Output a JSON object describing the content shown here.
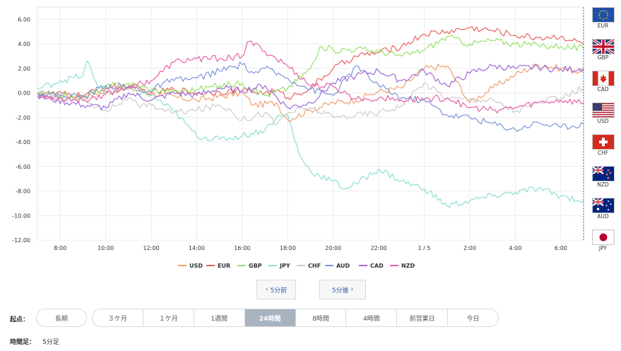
{
  "chart_data": {
    "type": "line",
    "ylim": [
      -12,
      7
    ],
    "xlim": [
      0,
      24
    ],
    "yticks": [
      6,
      4,
      2,
      0,
      -2,
      -4,
      -6,
      -8,
      -10,
      -12
    ],
    "ytick_labels": [
      "6.00",
      "4.00",
      "2.00",
      "0.00",
      "-2.00",
      "-4.00",
      "-6.00",
      "-8.00",
      "-10.00",
      "-12.00"
    ],
    "xticks": [
      1,
      3,
      5,
      7,
      9,
      11,
      13,
      15,
      17,
      19,
      21,
      23
    ],
    "xtick_labels": [
      "8:00",
      "10:00",
      "12:00",
      "14:00",
      "16:00",
      "18:00",
      "20:00",
      "22:00",
      "1 / 5",
      "2:00",
      "4:00",
      "6:00"
    ],
    "grid": true,
    "legend_position": "bottom",
    "series": [
      {
        "name": "USD",
        "color": "#f0a070",
        "x": [
          0,
          2,
          4,
          5.5,
          7,
          9,
          9.5,
          10.5,
          11,
          12,
          13,
          14,
          14.5,
          15,
          16,
          17,
          18,
          19,
          20,
          21,
          22,
          23,
          24
        ],
        "y": [
          -0.2,
          -0.3,
          0.4,
          -0.2,
          -0.6,
          0.0,
          -1.0,
          -0.8,
          -2.2,
          -1.4,
          -0.8,
          -0.6,
          -0.2,
          0.1,
          0.4,
          2.0,
          2.2,
          -0.8,
          0.4,
          1.5,
          2.3,
          2.0,
          1.7
        ]
      },
      {
        "name": "EUR",
        "color": "#e8645f",
        "x": [
          0,
          2,
          3,
          4,
          5,
          6,
          7,
          8,
          9,
          10,
          10.5,
          11,
          12,
          13,
          14,
          15,
          16,
          17,
          18,
          19,
          20,
          21,
          22,
          23,
          24
        ],
        "y": [
          0.0,
          -0.2,
          0.4,
          0.6,
          0.0,
          0.3,
          0.0,
          0.1,
          0.2,
          0.0,
          0.2,
          -0.4,
          0.4,
          2.0,
          3.0,
          3.3,
          3.8,
          4.8,
          5.0,
          5.3,
          5.1,
          4.7,
          4.5,
          4.6,
          4.0
        ]
      },
      {
        "name": "GBP",
        "color": "#96e068",
        "x": [
          0,
          2,
          3,
          4,
          5,
          6,
          7,
          8,
          9,
          10,
          11,
          12,
          12.5,
          13,
          14,
          15,
          16,
          17,
          18,
          19,
          20,
          21,
          22,
          23,
          24
        ],
        "y": [
          0.0,
          -0.4,
          0.5,
          0.8,
          0.3,
          0.1,
          0.3,
          0.6,
          0.8,
          -0.2,
          0.4,
          2.0,
          3.8,
          3.5,
          3.6,
          3.4,
          3.0,
          3.5,
          4.6,
          4.0,
          4.3,
          4.0,
          3.9,
          3.8,
          3.6
        ]
      },
      {
        "name": "JPY",
        "color": "#8cded4",
        "x": [
          0,
          1,
          2,
          2.2,
          2.6,
          3,
          4,
          5,
          6,
          6.5,
          7,
          8,
          9,
          10,
          10.5,
          11,
          11.5,
          12,
          13,
          13.5,
          14,
          15,
          16,
          17,
          18,
          19,
          20,
          21,
          22,
          23,
          24
        ],
        "y": [
          0.3,
          1.0,
          1.4,
          2.6,
          0.8,
          0.0,
          0.3,
          -0.2,
          -1.5,
          -2.5,
          -3.5,
          -3.8,
          -3.5,
          -3.0,
          -2.0,
          -1.8,
          -5.0,
          -6.4,
          -7.2,
          -7.8,
          -7.4,
          -6.2,
          -7.2,
          -7.8,
          -9.2,
          -8.8,
          -8.4,
          -8.1,
          -7.8,
          -8.4,
          -8.8
        ]
      },
      {
        "name": "CHF",
        "color": "#cccccc",
        "x": [
          0,
          2,
          3,
          4,
          4.5,
          5,
          6,
          7,
          8,
          8.5,
          9,
          10,
          10.5,
          11,
          12,
          13,
          14,
          15,
          16,
          17,
          18,
          19,
          20,
          21,
          22,
          23,
          24
        ],
        "y": [
          0.0,
          -0.6,
          -1.4,
          -0.4,
          -1.2,
          -1.0,
          -1.6,
          -1.4,
          -1.0,
          -1.4,
          -2.2,
          -1.6,
          -2.6,
          -1.6,
          -1.2,
          -2.0,
          -1.8,
          -1.6,
          -1.0,
          0.8,
          -0.4,
          -0.5,
          -0.6,
          -1.5,
          -0.8,
          -0.4,
          0.4
        ]
      },
      {
        "name": "AUD",
        "color": "#7a95d8",
        "x": [
          0,
          1,
          2,
          3,
          4,
          5,
          5.5,
          6,
          7,
          8,
          9,
          9.5,
          10,
          11,
          12,
          13,
          14,
          15,
          16,
          17,
          18,
          19,
          20,
          21,
          22,
          23,
          24
        ],
        "y": [
          0.0,
          -0.2,
          -0.3,
          0.6,
          0.5,
          0.1,
          0.8,
          1.0,
          1.2,
          1.8,
          2.3,
          1.6,
          2.0,
          1.2,
          0.3,
          -0.2,
          2.2,
          0.6,
          -0.4,
          -0.6,
          -1.8,
          -2.0,
          -2.5,
          -3.0,
          -2.4,
          -2.8,
          -2.5
        ]
      },
      {
        "name": "CAD",
        "color": "#a06ad8",
        "x": [
          0,
          2,
          3,
          4,
          5,
          6,
          7,
          8,
          9,
          10,
          11,
          12,
          13,
          14,
          15,
          16,
          17,
          18,
          19,
          20,
          21,
          22,
          23,
          24
        ],
        "y": [
          -0.3,
          -1.0,
          -1.2,
          0.0,
          -0.6,
          0.0,
          -0.2,
          0.4,
          0.2,
          0.6,
          -1.2,
          -0.8,
          0.8,
          1.4,
          1.8,
          1.0,
          1.8,
          0.6,
          1.6,
          2.2,
          2.0,
          2.1,
          1.9,
          2.0
        ]
      },
      {
        "name": "NZD",
        "color": "#e860a8",
        "x": [
          0,
          2,
          3,
          4,
          5,
          6,
          7,
          8,
          9,
          9.3,
          10,
          11,
          12,
          13,
          14,
          15,
          16,
          17,
          18,
          19,
          20,
          21,
          22,
          23,
          24
        ],
        "y": [
          -0.3,
          -0.6,
          -0.1,
          0.5,
          1.0,
          2.5,
          2.8,
          2.8,
          3.0,
          4.2,
          3.4,
          2.2,
          0.6,
          0.5,
          -0.5,
          -0.4,
          -0.6,
          -0.5,
          -0.4,
          -1.2,
          -1.4,
          -1.2,
          -0.8,
          -0.6,
          -0.8
        ]
      }
    ]
  },
  "flags": [
    {
      "code": "EUR",
      "icon": "eu-flag-icon"
    },
    {
      "code": "GBP",
      "icon": "uk-flag-icon"
    },
    {
      "code": "CAD",
      "icon": "canada-flag-icon"
    },
    {
      "code": "USD",
      "icon": "us-flag-icon"
    },
    {
      "code": "CHF",
      "icon": "swiss-flag-icon"
    },
    {
      "code": "NZD",
      "icon": "nz-flag-icon"
    },
    {
      "code": "AUD",
      "icon": "au-flag-icon"
    },
    {
      "code": "JPY",
      "icon": "japan-flag-icon"
    }
  ],
  "nav": {
    "prev_label": "5分前",
    "next_label": "5分後"
  },
  "start_label": "起点：",
  "start_single": "長期",
  "periods": [
    {
      "label": "３ケ月",
      "active": false
    },
    {
      "label": "１ケ月",
      "active": false
    },
    {
      "label": "1週間",
      "active": false
    },
    {
      "label": "24時間",
      "active": true
    },
    {
      "label": "8時間",
      "active": false
    },
    {
      "label": "4時間",
      "active": false
    },
    {
      "label": "前営業日",
      "active": false
    },
    {
      "label": "今日",
      "active": false
    }
  ],
  "interval_label": "時間足：",
  "interval_value": "5分足"
}
